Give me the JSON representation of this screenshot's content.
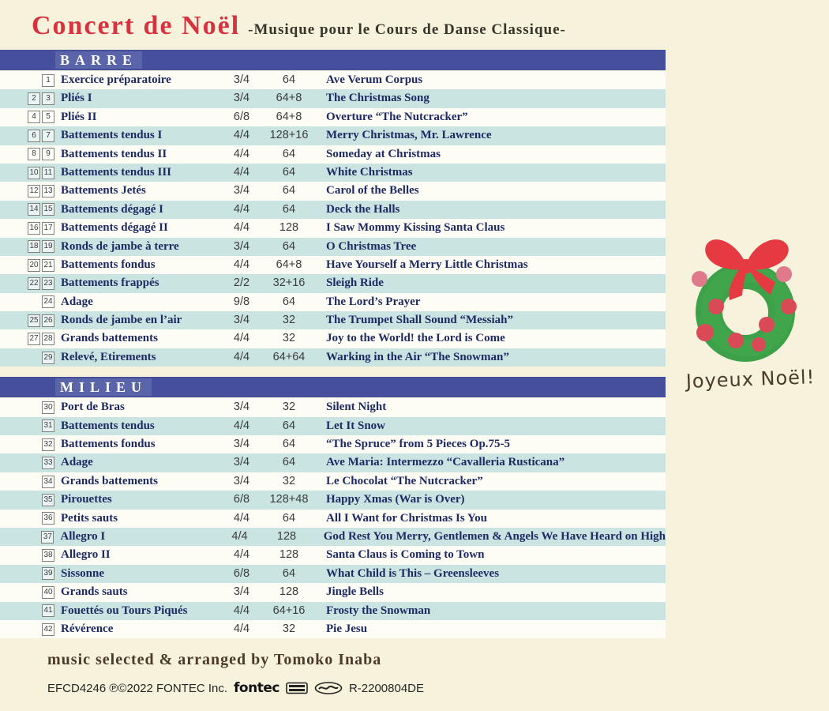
{
  "header": {
    "title": "Concert de Noël",
    "subtitle": "-Musique pour le Cours de Danse Classique-"
  },
  "colors": {
    "background": "#f6f2dc",
    "section_bar": "#454f9b",
    "row_teal": "#c9e4e1",
    "row_white": "#fdfdf6",
    "text_navy": "#1e2a63",
    "title_red": "#d8323f",
    "wreath_green": "#3da14a",
    "bow_red": "#e63a42",
    "berry_pink": "#e0798c",
    "berry_red": "#d94a56"
  },
  "sections": [
    {
      "name": "BARRE",
      "rows": [
        {
          "tracks": [
            "1"
          ],
          "exercise": "Exercice préparatoire",
          "time": "3/4",
          "counts": "64",
          "song": "Ave Verum Corpus"
        },
        {
          "tracks": [
            "2",
            "3"
          ],
          "exercise": "Pliés I",
          "time": "3/4",
          "counts": "64+8",
          "song": "The Christmas Song"
        },
        {
          "tracks": [
            "4",
            "5"
          ],
          "exercise": "Pliés II",
          "time": "6/8",
          "counts": "64+8",
          "song": "Overture “The Nutcracker”"
        },
        {
          "tracks": [
            "6",
            "7"
          ],
          "exercise": "Battements tendus I",
          "time": "4/4",
          "counts": "128+16",
          "song": "Merry Christmas, Mr. Lawrence"
        },
        {
          "tracks": [
            "8",
            "9"
          ],
          "exercise": "Battements tendus II",
          "time": "4/4",
          "counts": "64",
          "song": "Someday at Christmas"
        },
        {
          "tracks": [
            "10",
            "11"
          ],
          "exercise": "Battements tendus III",
          "time": "4/4",
          "counts": "64",
          "song": "White Christmas"
        },
        {
          "tracks": [
            "12",
            "13"
          ],
          "exercise": "Battements Jetés",
          "time": "3/4",
          "counts": "64",
          "song": "Carol of the Belles"
        },
        {
          "tracks": [
            "14",
            "15"
          ],
          "exercise": "Battements dégagé I",
          "time": "4/4",
          "counts": "64",
          "song": "Deck the Halls"
        },
        {
          "tracks": [
            "16",
            "17"
          ],
          "exercise": "Battements dégagé II",
          "time": "4/4",
          "counts": "128",
          "song": "I Saw Mommy Kissing Santa Claus"
        },
        {
          "tracks": [
            "18",
            "19"
          ],
          "exercise": "Ronds de jambe à terre",
          "time": "3/4",
          "counts": "64",
          "song": "O Christmas Tree"
        },
        {
          "tracks": [
            "20",
            "21"
          ],
          "exercise": "Battements fondus",
          "time": "4/4",
          "counts": "64+8",
          "song": "Have Yourself a Merry Little Christmas"
        },
        {
          "tracks": [
            "22",
            "23"
          ],
          "exercise": "Battements frappés",
          "time": "2/2",
          "counts": "32+16",
          "song": "Sleigh Ride"
        },
        {
          "tracks": [
            "24"
          ],
          "exercise": "Adage",
          "time": "9/8",
          "counts": "64",
          "song": "The Lord’s Prayer"
        },
        {
          "tracks": [
            "25",
            "26"
          ],
          "exercise": "Ronds de jambe en l’air",
          "time": "3/4",
          "counts": "32",
          "song": "The Trumpet Shall Sound “Messiah”"
        },
        {
          "tracks": [
            "27",
            "28"
          ],
          "exercise": "Grands battements",
          "time": "4/4",
          "counts": "32",
          "song": "Joy to the World! the Lord is Come"
        },
        {
          "tracks": [
            "29"
          ],
          "exercise": "Relevé, Etirements",
          "time": "4/4",
          "counts": "64+64",
          "song": "Warking in the Air “The Snowman”"
        }
      ]
    },
    {
      "name": "MILIEU",
      "rows": [
        {
          "tracks": [
            "30"
          ],
          "exercise": "Port de Bras",
          "time": "3/4",
          "counts": "32",
          "song": "Silent Night"
        },
        {
          "tracks": [
            "31"
          ],
          "exercise": "Battements tendus",
          "time": "4/4",
          "counts": "64",
          "song": "Let It Snow"
        },
        {
          "tracks": [
            "32"
          ],
          "exercise": "Battements fondus",
          "time": "3/4",
          "counts": "64",
          "song": "“The Spruce” from 5 Pieces Op.75-5"
        },
        {
          "tracks": [
            "33"
          ],
          "exercise": "Adage",
          "time": "3/4",
          "counts": "64",
          "song": "Ave Maria: Intermezzo “Cavalleria Rusticana”"
        },
        {
          "tracks": [
            "34"
          ],
          "exercise": "Grands battements",
          "time": "3/4",
          "counts": "32",
          "song": "Le Chocolat  “The Nutcracker”"
        },
        {
          "tracks": [
            "35"
          ],
          "exercise": "Pirouettes",
          "time": "6/8",
          "counts": "128+48",
          "song": "Happy Xmas (War is Over)"
        },
        {
          "tracks": [
            "36"
          ],
          "exercise": "Petits sauts",
          "time": "4/4",
          "counts": "64",
          "song": "All I Want for Christmas Is You"
        },
        {
          "tracks": [
            "37"
          ],
          "exercise": "Allegro I",
          "time": "4/4",
          "counts": "128",
          "song": "God Rest You Merry, Gentlemen & Angels We Have Heard on High"
        },
        {
          "tracks": [
            "38"
          ],
          "exercise": "Allegro II",
          "time": "4/4",
          "counts": "128",
          "song": "Santa Claus is Coming to Town"
        },
        {
          "tracks": [
            "39"
          ],
          "exercise": "Sissonne",
          "time": "6/8",
          "counts": "64",
          "song": "What Child is This – Greensleeves"
        },
        {
          "tracks": [
            "40"
          ],
          "exercise": "Grands sauts",
          "time": "3/4",
          "counts": "128",
          "song": "Jingle Bells"
        },
        {
          "tracks": [
            "41"
          ],
          "exercise": "Fouettés ou Tours Piqués",
          "time": "4/4",
          "counts": "64+16",
          "song": "Frosty the Snowman"
        },
        {
          "tracks": [
            "42"
          ],
          "exercise": "Révérence",
          "time": "4/4",
          "counts": "32",
          "song": "Pie Jesu"
        }
      ]
    }
  ],
  "wreath": {
    "caption": "Joyeux Noël!"
  },
  "footer": {
    "credit": "music selected & arranged by Tomoko Inaba",
    "catalog": "EFCD4246 ℗©2022 FONTEC Inc.",
    "brand": "fontec",
    "code": "R-2200804DE"
  }
}
